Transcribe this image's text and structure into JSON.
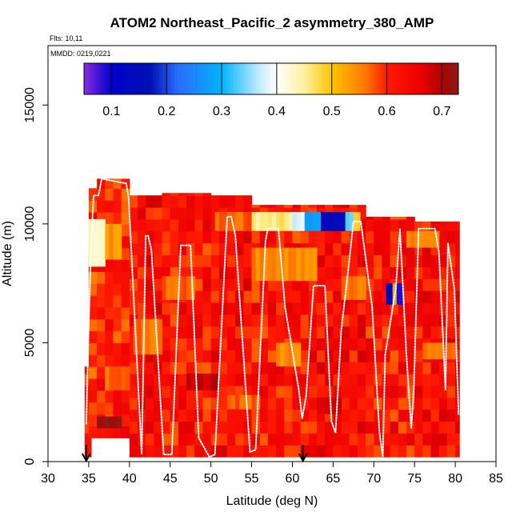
{
  "chart_data": {
    "type": "heatmap",
    "title": "ATOM2 Northeast_Pacific_2 asymmetry_380_AMP",
    "flights_note": "Flts: 10,11",
    "date_note": "MMDD: 0219,0221",
    "xlabel": "Latitude (deg N)",
    "ylabel": "Altitude (m)",
    "xlim": [
      30,
      85
    ],
    "ylim": [
      0,
      17500
    ],
    "x_ticks": [
      "30",
      "35",
      "40",
      "45",
      "50",
      "55",
      "60",
      "65",
      "70",
      "75",
      "80",
      "85"
    ],
    "y_ticks": [
      "0",
      "5000",
      "10000",
      "15000"
    ],
    "colorbar": {
      "range": [
        0.05,
        0.73
      ],
      "ticks": [
        "0.1",
        "0.2",
        "0.3",
        "0.4",
        "0.5",
        "0.6",
        "0.7"
      ],
      "stops": [
        {
          "v": 0.05,
          "c": "#8a2be2"
        },
        {
          "v": 0.1,
          "c": "#0000cd"
        },
        {
          "v": 0.17,
          "c": "#0010b0"
        },
        {
          "v": 0.22,
          "c": "#2a6cff"
        },
        {
          "v": 0.3,
          "c": "#00b4ff"
        },
        {
          "v": 0.37,
          "c": "#c8ecff"
        },
        {
          "v": 0.4,
          "c": "#ffffff"
        },
        {
          "v": 0.45,
          "c": "#fff1a0"
        },
        {
          "v": 0.5,
          "c": "#ffc400"
        },
        {
          "v": 0.56,
          "c": "#ff7a00"
        },
        {
          "v": 0.6,
          "c": "#ff1a00"
        },
        {
          "v": 0.66,
          "c": "#ee0000"
        },
        {
          "v": 0.7,
          "c": "#b00000"
        },
        {
          "v": 0.73,
          "c": "#8b1a1a"
        }
      ]
    },
    "arrows_x": [
      34.7,
      61.3
    ],
    "columns": [
      {
        "x0": 34.5,
        "x1": 35.3,
        "y0": 200,
        "y1": 4000,
        "v": 0.62
      },
      {
        "x0": 35.0,
        "x1": 36.0,
        "y0": 1000,
        "y1": 11500,
        "v": 0.6
      },
      {
        "x0": 36.0,
        "x1": 40.0,
        "y0": 1000,
        "y1": 11900,
        "v": 0.61
      },
      {
        "x0": 40.0,
        "x1": 44.0,
        "y0": 200,
        "y1": 11200,
        "v": 0.63
      },
      {
        "x0": 44.0,
        "x1": 50.0,
        "y0": 200,
        "y1": 11300,
        "v": 0.62
      },
      {
        "x0": 50.0,
        "x1": 55.0,
        "y0": 200,
        "y1": 11200,
        "v": 0.63
      },
      {
        "x0": 55.0,
        "x1": 62.0,
        "y0": 200,
        "y1": 10800,
        "v": 0.62
      },
      {
        "x0": 62.0,
        "x1": 69.0,
        "y0": 200,
        "y1": 10800,
        "v": 0.63
      },
      {
        "x0": 69.0,
        "x1": 75.0,
        "y0": 200,
        "y1": 10300,
        "v": 0.62
      },
      {
        "x0": 75.0,
        "x1": 80.5,
        "y0": 200,
        "y1": 10100,
        "v": 0.63
      }
    ],
    "patches": [
      {
        "x0": 35.0,
        "x1": 37.0,
        "y0": 8200,
        "y1": 10200,
        "v": 0.44
      },
      {
        "x0": 37.0,
        "x1": 39.0,
        "y0": 8500,
        "y1": 10000,
        "v": 0.54
      },
      {
        "x0": 50.5,
        "x1": 55.0,
        "y0": 9700,
        "y1": 10500,
        "v": 0.57
      },
      {
        "x0": 55.0,
        "x1": 60.0,
        "y0": 9700,
        "y1": 10500,
        "v": 0.46
      },
      {
        "x0": 60.0,
        "x1": 61.5,
        "y0": 9700,
        "y1": 10500,
        "v": 0.37
      },
      {
        "x0": 61.5,
        "x1": 63.5,
        "y0": 9700,
        "y1": 10500,
        "v": 0.27
      },
      {
        "x0": 63.5,
        "x1": 66.5,
        "y0": 9700,
        "y1": 10500,
        "v": 0.14
      },
      {
        "x0": 66.5,
        "x1": 67.5,
        "y0": 9700,
        "y1": 10500,
        "v": 0.34
      },
      {
        "x0": 67.5,
        "x1": 68.3,
        "y0": 9700,
        "y1": 10500,
        "v": 0.48
      },
      {
        "x0": 55.0,
        "x1": 63.0,
        "y0": 7600,
        "y1": 9000,
        "v": 0.55
      },
      {
        "x0": 71.5,
        "x1": 72.3,
        "y0": 6600,
        "y1": 7500,
        "v": 0.13
      },
      {
        "x0": 72.3,
        "x1": 72.8,
        "y0": 6600,
        "y1": 7500,
        "v": 0.52
      },
      {
        "x0": 72.8,
        "x1": 73.6,
        "y0": 6600,
        "y1": 7500,
        "v": 0.08
      },
      {
        "x0": 36.0,
        "x1": 39.0,
        "y0": 1400,
        "y1": 1900,
        "v": 0.71
      },
      {
        "x0": 40.5,
        "x1": 44.0,
        "y0": 4500,
        "y1": 6000,
        "v": 0.56
      },
      {
        "x0": 44.0,
        "x1": 48.0,
        "y0": 6800,
        "y1": 7800,
        "v": 0.57
      },
      {
        "x0": 66.0,
        "x1": 69.0,
        "y0": 6800,
        "y1": 7800,
        "v": 0.56
      },
      {
        "x0": 52.0,
        "x1": 56.0,
        "y0": 2200,
        "y1": 2800,
        "v": 0.57
      },
      {
        "x0": 76.0,
        "x1": 80.0,
        "y0": 4300,
        "y1": 5000,
        "v": 0.57
      },
      {
        "x0": 63.0,
        "x1": 66.0,
        "y0": 2000,
        "y1": 2700,
        "v": 0.68
      },
      {
        "x0": 47.0,
        "x1": 51.0,
        "y0": 3000,
        "y1": 3700,
        "v": 0.69
      },
      {
        "x0": 74.0,
        "x1": 78.0,
        "y0": 9000,
        "y1": 9700,
        "v": 0.56
      },
      {
        "x0": 37.0,
        "x1": 40.0,
        "y0": 3000,
        "y1": 4000,
        "v": 0.56
      },
      {
        "x0": 58.0,
        "x1": 61.0,
        "y0": 4000,
        "y1": 5000,
        "v": 0.55
      }
    ],
    "flight_track": [
      [
        34.7,
        1600
      ],
      [
        34.9,
        4500
      ],
      [
        35.3,
        9200
      ],
      [
        35.6,
        11200
      ],
      [
        36.2,
        11200
      ],
      [
        36.6,
        11900
      ],
      [
        39.6,
        11700
      ],
      [
        39.9,
        11100
      ],
      [
        41.5,
        300
      ],
      [
        42.0,
        9500
      ],
      [
        42.3,
        9500
      ],
      [
        42.7,
        8900
      ],
      [
        44.2,
        300
      ],
      [
        45.2,
        300
      ],
      [
        46.3,
        9100
      ],
      [
        47.5,
        9100
      ],
      [
        48.5,
        1000
      ],
      [
        49.8,
        200
      ],
      [
        50.5,
        300
      ],
      [
        52.0,
        10300
      ],
      [
        52.5,
        10300
      ],
      [
        53.0,
        9500
      ],
      [
        54.8,
        400
      ],
      [
        55.5,
        500
      ],
      [
        56.7,
        9300
      ],
      [
        57.0,
        9800
      ],
      [
        58.3,
        9800
      ],
      [
        59.1,
        6500
      ],
      [
        60.8,
        3000
      ],
      [
        61.2,
        1800
      ],
      [
        61.7,
        2800
      ],
      [
        62.6,
        7400
      ],
      [
        64.0,
        7400
      ],
      [
        64.8,
        1700
      ],
      [
        65.3,
        1200
      ],
      [
        66.0,
        5500
      ],
      [
        67.0,
        8500
      ],
      [
        67.5,
        10100
      ],
      [
        68.4,
        10100
      ],
      [
        69.8,
        6500
      ],
      [
        70.7,
        1200
      ],
      [
        71.1,
        200
      ],
      [
        71.4,
        4500
      ],
      [
        72.7,
        7300
      ],
      [
        73.2,
        9800
      ],
      [
        74.0,
        4500
      ],
      [
        74.6,
        1400
      ],
      [
        74.9,
        3000
      ],
      [
        75.5,
        9800
      ],
      [
        77.5,
        9800
      ],
      [
        78.0,
        8800
      ],
      [
        78.8,
        3000
      ],
      [
        79.1,
        9200
      ],
      [
        79.9,
        7200
      ],
      [
        80.4,
        2000
      ]
    ]
  }
}
